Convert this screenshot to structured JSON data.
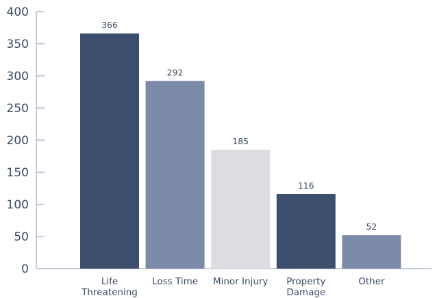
{
  "chart_data": {
    "type": "bar",
    "title": "",
    "xlabel": "",
    "ylabel": "",
    "ylim": [
      0,
      400
    ],
    "yticks": [
      0,
      50,
      100,
      150,
      200,
      250,
      300,
      350,
      400
    ],
    "grid": false,
    "legend": "none",
    "categories": [
      [
        "Life",
        "Threatening"
      ],
      [
        "Loss Time"
      ],
      [
        "Minor Injury"
      ],
      [
        "Property",
        "Damage"
      ],
      [
        "Other"
      ]
    ],
    "values": [
      366,
      292,
      185,
      116,
      52
    ],
    "colors": [
      "#3d4f6e",
      "#7b8aa6",
      "#dcdde0",
      "#3d4f6e",
      "#7b8aa6"
    ],
    "axis_color": "#8a9bb4",
    "text_color": "#3a4a66"
  }
}
